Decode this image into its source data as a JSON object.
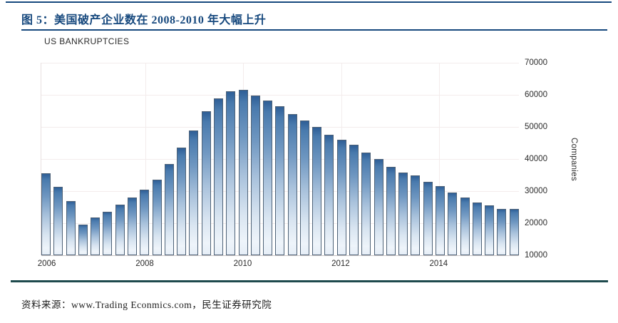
{
  "figure": {
    "title": "图 5：美国破产企业数在 2008-2010 年大幅上升",
    "source": "资料来源：www.Trading Econmics.com，民生证券研究院"
  },
  "colors": {
    "accent_blue": "#17497e",
    "teal_rule": "#1e4a4d",
    "bar_fill_top": "#3a6aa0",
    "bar_fill_bottom": "#edf3f9",
    "bar_border": "#4e6277",
    "gridline": "#f3ecec",
    "axis_text": "#2b2b2b"
  },
  "chart_data": {
    "type": "bar",
    "title": "US BANKRUPTCIES",
    "xlabel": "",
    "ylabel": "Companies",
    "ylim": [
      10000,
      70000
    ],
    "yticks": [
      10000,
      20000,
      30000,
      40000,
      50000,
      60000,
      70000
    ],
    "grid": true,
    "legend": "none",
    "x": [
      "2006 Q1",
      "2006 Q2",
      "2006 Q3",
      "2006 Q4",
      "2007 Q1",
      "2007 Q2",
      "2007 Q3",
      "2007 Q4",
      "2008 Q1",
      "2008 Q2",
      "2008 Q3",
      "2008 Q4",
      "2009 Q1",
      "2009 Q2",
      "2009 Q3",
      "2009 Q4",
      "2010 Q1",
      "2010 Q2",
      "2010 Q3",
      "2010 Q4",
      "2011 Q1",
      "2011 Q2",
      "2011 Q3",
      "2011 Q4",
      "2012 Q1",
      "2012 Q2",
      "2012 Q3",
      "2012 Q4",
      "2013 Q1",
      "2013 Q2",
      "2013 Q3",
      "2013 Q4",
      "2014 Q1",
      "2014 Q2",
      "2014 Q3",
      "2014 Q4",
      "2015 Q1",
      "2015 Q2",
      "2015 Q3"
    ],
    "values": [
      35500,
      31300,
      27000,
      19500,
      21700,
      23500,
      25700,
      28000,
      30500,
      33500,
      38500,
      43500,
      49000,
      55000,
      59000,
      61200,
      61600,
      59800,
      58200,
      56400,
      54000,
      52000,
      50000,
      47500,
      46000,
      44500,
      42000,
      40000,
      37500,
      35700,
      35000,
      33000,
      31500,
      29500,
      28000,
      26500,
      25600,
      24500,
      24500
    ],
    "x_year_ticks": [
      {
        "label": "2006",
        "index": 0
      },
      {
        "label": "2008",
        "index": 8
      },
      {
        "label": "2010",
        "index": 16
      },
      {
        "label": "2012",
        "index": 24
      },
      {
        "label": "2014",
        "index": 32
      }
    ]
  }
}
